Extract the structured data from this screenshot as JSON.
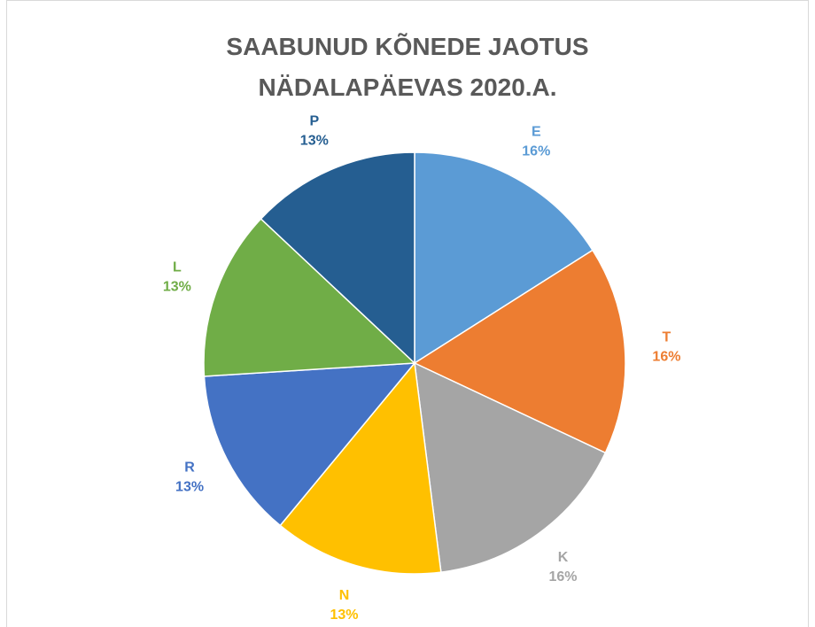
{
  "chart_data": {
    "type": "pie",
    "title": "SAABUNUD KÕNEDE JAOTUS NÄDALAPÄEVAS 2020.A.",
    "categories": [
      "E",
      "T",
      "K",
      "N",
      "R",
      "L",
      "P"
    ],
    "values": [
      16,
      16,
      16,
      13,
      13,
      13,
      13
    ],
    "value_labels": [
      "16%",
      "16%",
      "16%",
      "13%",
      "13%",
      "13%",
      "13%"
    ],
    "colors": [
      "#5b9bd5",
      "#ed7d31",
      "#a5a5a5",
      "#ffc000",
      "#4472c4",
      "#70ad47",
      "#255e91"
    ]
  }
}
